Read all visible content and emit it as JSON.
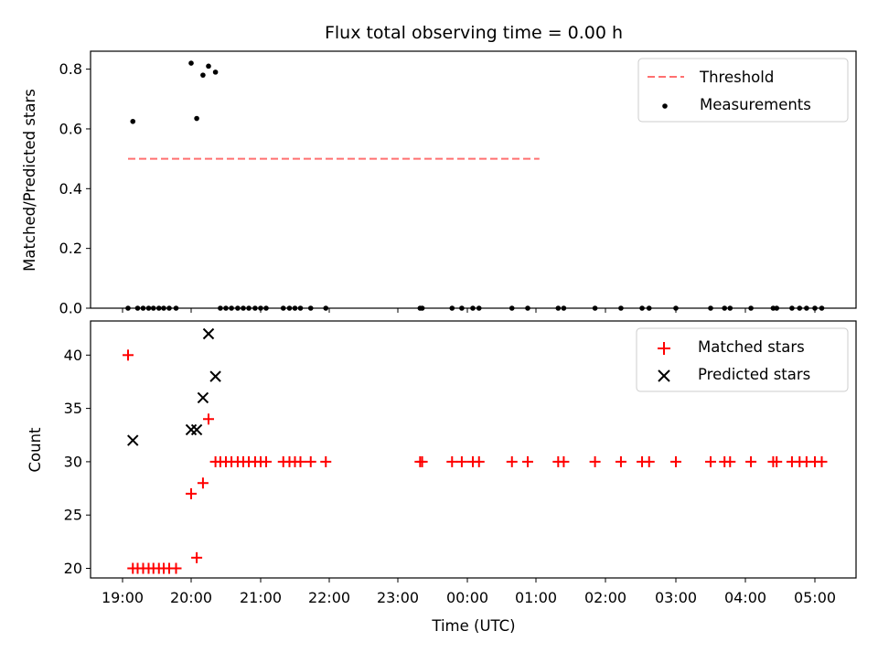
{
  "chart_data": [
    {
      "type": "scatter",
      "title": "Flux total observing time = 0.00 h",
      "ylabel": "Matched/Predicted stars",
      "ylim": [
        0,
        0.86
      ],
      "xlim_hours": [
        18.55,
        25.75
      ],
      "yticks": [
        "0.0",
        "0.2",
        "0.4",
        "0.6",
        "0.8"
      ],
      "ytick_values": [
        0,
        0.2,
        0.4,
        0.6,
        0.8
      ],
      "legend_position": "upper right",
      "threshold": {
        "name": "Threshold",
        "value": 0.5,
        "x_from": 19.08,
        "x_to": 25.05,
        "color": "#ff7070",
        "style": "dashed"
      },
      "series": [
        {
          "name": "Measurements",
          "color": "#000000",
          "marker": "dot",
          "points": [
            [
              19.08,
              0
            ],
            [
              19.15,
              0.625
            ],
            [
              19.22,
              0
            ],
            [
              19.3,
              0
            ],
            [
              19.38,
              0
            ],
            [
              19.45,
              0
            ],
            [
              19.53,
              0
            ],
            [
              19.6,
              0
            ],
            [
              19.68,
              0
            ],
            [
              19.78,
              0
            ],
            [
              20.0,
              0.82
            ],
            [
              20.08,
              0.635
            ],
            [
              20.17,
              0.78
            ],
            [
              20.25,
              0.81
            ],
            [
              20.35,
              0.79
            ],
            [
              20.42,
              0
            ],
            [
              20.5,
              0
            ],
            [
              20.58,
              0
            ],
            [
              20.67,
              0
            ],
            [
              20.75,
              0
            ],
            [
              20.83,
              0
            ],
            [
              20.92,
              0
            ],
            [
              21.0,
              0
            ],
            [
              21.08,
              0
            ],
            [
              21.33,
              0
            ],
            [
              21.42,
              0
            ],
            [
              21.5,
              0
            ],
            [
              21.58,
              0
            ],
            [
              21.73,
              0
            ],
            [
              21.95,
              0
            ],
            [
              23.32,
              0
            ],
            [
              23.35,
              0
            ],
            [
              23.78,
              0
            ],
            [
              23.92,
              0
            ],
            [
              24.08,
              0
            ],
            [
              24.17,
              0
            ],
            [
              24.65,
              0
            ],
            [
              24.88,
              0
            ],
            [
              25.32,
              0
            ],
            [
              25.4,
              0
            ],
            [
              25.85,
              0
            ],
            [
              26.22,
              0
            ],
            [
              26.52,
              0
            ],
            [
              26.62,
              0
            ],
            [
              27.0,
              0
            ],
            [
              27.5,
              0
            ],
            [
              27.7,
              0
            ],
            [
              27.78,
              0
            ],
            [
              28.08,
              0
            ],
            [
              28.4,
              0
            ],
            [
              28.45,
              0
            ],
            [
              28.67,
              0
            ],
            [
              28.78,
              0
            ],
            [
              28.88,
              0
            ],
            [
              29.0,
              0
            ],
            [
              29.1,
              0
            ]
          ]
        }
      ]
    },
    {
      "type": "scatter",
      "ylabel": "Count",
      "xlabel": "Time (UTC)",
      "ylim": [
        19.1,
        43.2
      ],
      "yticks": [
        "20",
        "25",
        "30",
        "35",
        "40"
      ],
      "ytick_values": [
        20,
        25,
        30,
        35,
        40
      ],
      "xticks": [
        "19:00",
        "20:00",
        "21:00",
        "22:00",
        "23:00",
        "00:00",
        "01:00",
        "02:00",
        "03:00",
        "04:00",
        "05:00"
      ],
      "xtick_hours": [
        19,
        20,
        21,
        22,
        23,
        24,
        25,
        26,
        27,
        28,
        29
      ],
      "legend_position": "upper right",
      "series": [
        {
          "name": "Matched stars",
          "color": "#ff0000",
          "marker": "plus",
          "points": [
            [
              19.08,
              40
            ],
            [
              19.15,
              20
            ],
            [
              19.22,
              20
            ],
            [
              19.3,
              20
            ],
            [
              19.38,
              20
            ],
            [
              19.45,
              20
            ],
            [
              19.53,
              20
            ],
            [
              19.6,
              20
            ],
            [
              19.68,
              20
            ],
            [
              19.78,
              20
            ],
            [
              20.0,
              27
            ],
            [
              20.08,
              21
            ],
            [
              20.17,
              28
            ],
            [
              20.25,
              34
            ],
            [
              20.35,
              30
            ],
            [
              20.42,
              30
            ],
            [
              20.5,
              30
            ],
            [
              20.58,
              30
            ],
            [
              20.67,
              30
            ],
            [
              20.75,
              30
            ],
            [
              20.83,
              30
            ],
            [
              20.92,
              30
            ],
            [
              21.0,
              30
            ],
            [
              21.08,
              30
            ],
            [
              21.33,
              30
            ],
            [
              21.42,
              30
            ],
            [
              21.5,
              30
            ],
            [
              21.58,
              30
            ],
            [
              21.73,
              30
            ],
            [
              21.95,
              30
            ],
            [
              23.32,
              30
            ],
            [
              23.35,
              30
            ],
            [
              23.78,
              30
            ],
            [
              23.92,
              30
            ],
            [
              24.08,
              30
            ],
            [
              24.17,
              30
            ],
            [
              24.65,
              30
            ],
            [
              24.88,
              30
            ],
            [
              25.32,
              30
            ],
            [
              25.4,
              30
            ],
            [
              25.85,
              30
            ],
            [
              26.22,
              30
            ],
            [
              26.52,
              30
            ],
            [
              26.62,
              30
            ],
            [
              27.0,
              30
            ],
            [
              27.5,
              30
            ],
            [
              27.7,
              30
            ],
            [
              27.78,
              30
            ],
            [
              28.08,
              30
            ],
            [
              28.4,
              30
            ],
            [
              28.45,
              30
            ],
            [
              28.67,
              30
            ],
            [
              28.78,
              30
            ],
            [
              28.88,
              30
            ],
            [
              29.0,
              30
            ],
            [
              29.1,
              30
            ]
          ]
        },
        {
          "name": "Predicted stars",
          "color": "#000000",
          "marker": "x",
          "points": [
            [
              19.15,
              32
            ],
            [
              20.0,
              33
            ],
            [
              20.08,
              33
            ],
            [
              20.17,
              36
            ],
            [
              20.25,
              42
            ],
            [
              20.35,
              38
            ]
          ]
        }
      ]
    }
  ]
}
